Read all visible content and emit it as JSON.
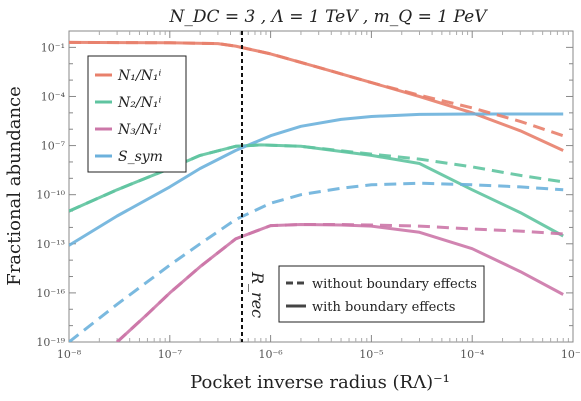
{
  "chart_data": {
    "type": "line",
    "title": "N_DC = 3 ,  Λ = 1 TeV ,  m_Q = 1 PeV",
    "xlabel": "Pocket inverse radius (RΛ)⁻¹",
    "ylabel": "Fractional abundance",
    "x_scale": "log",
    "y_scale": "log",
    "xlim": [
      1e-08,
      0.001
    ],
    "ylim": [
      1e-19,
      1
    ],
    "x_ticks": [
      "10⁻⁸",
      "10⁻⁷",
      "10⁻⁶",
      "10⁻⁵",
      "10⁻⁴",
      "10⁻³"
    ],
    "y_ticks": [
      "10⁻¹⁹",
      "10⁻¹⁶",
      "10⁻¹³",
      "10⁻¹⁰",
      "10⁻⁷",
      "10⁻⁴",
      "10⁻¹"
    ],
    "vline": {
      "x": 4.5e-07,
      "label": "R_rec"
    },
    "legend_series": [
      {
        "label": "N₁/N₁ⁱ",
        "color": "#e8806b"
      },
      {
        "label": "N₂/N₁ⁱ",
        "color": "#5fc4a0"
      },
      {
        "label": "N₃/N₁ⁱ",
        "color": "#cc77a8"
      },
      {
        "label": "S_sym",
        "color": "#6cb1dc"
      }
    ],
    "legend_styles": [
      {
        "label": "without boundary effects",
        "style": "dashed"
      },
      {
        "label": "with boundary effects",
        "style": "solid"
      }
    ],
    "series": [
      {
        "name": "N₁/N₁ⁱ",
        "style": "solid",
        "color": "#e8806b",
        "x": [
          1e-08,
          1e-07,
          3e-07,
          4.5e-07,
          1e-06,
          3e-06,
          1e-05,
          3e-05,
          0.0001,
          0.0003,
          0.0008
        ],
        "y": [
          0.2,
          0.19,
          0.17,
          0.12,
          0.04,
          0.006,
          0.0007,
          0.0001,
          1e-05,
          8e-07,
          5e-08
        ]
      },
      {
        "name": "N₁/N₁ⁱ",
        "style": "dashed",
        "color": "#e8806b",
        "x": [
          1e-08,
          1e-07,
          3e-07,
          4.5e-07,
          1e-06,
          3e-06,
          1e-05,
          3e-05,
          0.0001,
          0.0003,
          0.0008
        ],
        "y": [
          0.2,
          0.19,
          0.17,
          0.12,
          0.04,
          0.006,
          0.0007,
          0.00012,
          2e-05,
          3e-06,
          4e-07
        ]
      },
      {
        "name": "N₂/N₁ⁱ",
        "style": "solid",
        "color": "#5fc4a0",
        "x": [
          1e-08,
          3e-08,
          1e-07,
          2e-07,
          4.5e-07,
          8e-07,
          2e-06,
          1e-05,
          3e-05,
          0.0001,
          0.0003,
          0.0008
        ],
        "y": [
          1e-11,
          2e-10,
          4e-09,
          2.5e-08,
          9e-08,
          1.1e-07,
          9e-08,
          2.5e-08,
          8e-09,
          2e-10,
          8e-12,
          3e-13
        ]
      },
      {
        "name": "N₂/N₁ⁱ",
        "style": "dashed",
        "color": "#5fc4a0",
        "x": [
          1e-08,
          3e-08,
          1e-07,
          2e-07,
          4.5e-07,
          8e-07,
          2e-06,
          1e-05,
          3e-05,
          0.0001,
          0.0003,
          0.0008
        ],
        "y": [
          1e-11,
          2e-10,
          4e-09,
          2.5e-08,
          9e-08,
          1.1e-07,
          9e-08,
          3e-08,
          1.5e-08,
          5e-09,
          1.5e-09,
          6e-10
        ]
      },
      {
        "name": "N₃/N₁ⁱ",
        "style": "solid",
        "color": "#cc77a8",
        "x": [
          3e-08,
          6e-08,
          1e-07,
          2e-07,
          4.5e-07,
          1e-06,
          2e-06,
          5e-06,
          1e-05,
          3e-05,
          0.0001,
          0.0003,
          0.0008
        ],
        "y": [
          1e-19,
          5e-18,
          1e-16,
          4e-15,
          2e-13,
          1.3e-12,
          1.5e-12,
          1.4e-12,
          1.2e-12,
          5e-13,
          5e-14,
          2e-15,
          8e-17
        ]
      },
      {
        "name": "N₃/N₁ⁱ",
        "style": "dashed",
        "color": "#cc77a8",
        "x": [
          3e-08,
          6e-08,
          1e-07,
          2e-07,
          4.5e-07,
          1e-06,
          2e-06,
          5e-06,
          1e-05,
          3e-05,
          0.0001,
          0.0003,
          0.0008
        ],
        "y": [
          1e-19,
          5e-18,
          1e-16,
          4e-15,
          2e-13,
          1.3e-12,
          1.5e-12,
          1.5e-12,
          1.4e-12,
          1.2e-12,
          8e-13,
          6e-13,
          4e-13
        ]
      },
      {
        "name": "S_sym",
        "style": "solid",
        "color": "#6cb1dc",
        "x": [
          1e-08,
          3e-08,
          1e-07,
          2e-07,
          4.5e-07,
          1e-06,
          2e-06,
          5e-06,
          1e-05,
          3e-05,
          0.0001,
          0.0003,
          0.0008
        ],
        "y": [
          8e-14,
          5e-12,
          3e-10,
          4e-09,
          5e-08,
          4e-07,
          1.5e-06,
          4e-06,
          6e-06,
          8e-06,
          8.5e-06,
          8.5e-06,
          8.5e-06
        ]
      },
      {
        "name": "S_sym",
        "style": "dashed",
        "color": "#6cb1dc",
        "x": [
          1e-08,
          3e-08,
          1e-07,
          2e-07,
          4.5e-07,
          1e-06,
          2e-06,
          5e-06,
          1e-05,
          3e-05,
          0.0001,
          0.0003,
          0.0008
        ],
        "y": [
          1e-19,
          2e-17,
          5e-15,
          1e-13,
          3e-12,
          3e-11,
          1e-10,
          2.5e-10,
          4e-10,
          5e-10,
          4e-10,
          3e-10,
          2e-10
        ]
      }
    ]
  }
}
